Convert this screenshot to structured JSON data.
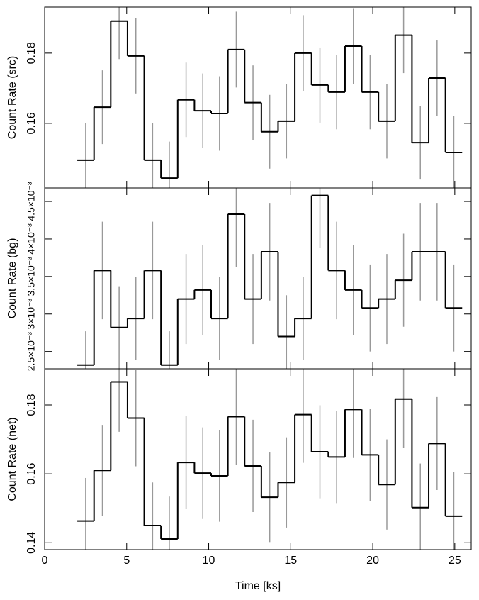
{
  "chart_data": [
    {
      "type": "line",
      "ylabel": "Count Rate (src)",
      "xlim": [
        0,
        26
      ],
      "xticks": [
        0,
        5,
        10,
        15,
        20,
        25
      ],
      "ylim": [
        0.1416,
        0.1931
      ],
      "yticks": [
        0.16,
        0.18
      ],
      "x": [
        2.5,
        3.52,
        4.54,
        5.56,
        6.58,
        7.6,
        8.62,
        9.64,
        10.66,
        11.68,
        12.7,
        13.72,
        14.74,
        15.76,
        16.78,
        17.8,
        18.82,
        19.84,
        20.86,
        21.88,
        22.9,
        23.92,
        24.94
      ],
      "series": [
        {
          "color": "#000000",
          "error_color": "#999999",
          "values": [
            0.1495,
            0.1646,
            0.1891,
            0.1792,
            0.1495,
            0.1444,
            0.1667,
            0.1636,
            0.1628,
            0.181,
            0.1659,
            0.1576,
            0.1606,
            0.18,
            0.1709,
            0.1689,
            0.182,
            0.1689,
            0.1606,
            0.1851,
            0.1545,
            0.1729,
            0.1517
          ],
          "errors": [
            0.0105,
            0.0105,
            0.0108,
            0.0107,
            0.0105,
            0.0104,
            0.0106,
            0.0106,
            0.0106,
            0.0108,
            0.0106,
            0.0105,
            0.0106,
            0.0108,
            0.0107,
            0.0106,
            0.0108,
            0.0106,
            0.0106,
            0.0108,
            0.0105,
            0.0107,
            0.0105
          ]
        }
      ]
    },
    {
      "type": "line",
      "ylabel": "Count Rate (bg)",
      "xlim": [
        0,
        26
      ],
      "xticks": [
        0,
        5,
        10,
        15,
        20,
        25
      ],
      "ylim": [
        0.00227,
        0.00468
      ],
      "yticks": [
        {
          "value": 0.0025,
          "label": "2.5×10⁻³"
        },
        {
          "value": 0.003,
          "label": "3×10⁻³"
        },
        {
          "value": 0.0035,
          "label": "3.5×10⁻³"
        },
        {
          "value": 0.004,
          "label": "4×10⁻³"
        },
        {
          "value": 0.0045,
          "label": "4.5×10⁻³"
        }
      ],
      "x": [
        2.5,
        3.52,
        4.54,
        5.56,
        6.58,
        7.6,
        8.62,
        9.64,
        10.66,
        11.68,
        12.7,
        13.72,
        14.74,
        15.76,
        16.78,
        17.8,
        18.82,
        19.84,
        20.86,
        21.88,
        22.9,
        23.92,
        24.94
      ],
      "series": [
        {
          "color": "#000000",
          "error_color": "#999999",
          "values": [
            0.00232,
            0.00358,
            0.00282,
            0.00294,
            0.00358,
            0.00232,
            0.0032,
            0.00332,
            0.00294,
            0.00433,
            0.0032,
            0.00383,
            0.0027,
            0.00294,
            0.00458,
            0.00358,
            0.00332,
            0.00308,
            0.0032,
            0.00345,
            0.00383,
            0.00383,
            0.00308
          ],
          "errors": [
            0.00045,
            0.00065,
            0.00055,
            0.00055,
            0.00065,
            0.00045,
            0.0006,
            0.0006,
            0.00055,
            0.0007,
            0.0006,
            0.00065,
            0.00055,
            0.00055,
            0.0007,
            0.00065,
            0.0006,
            0.00058,
            0.0006,
            0.00062,
            0.00065,
            0.00065,
            0.00058
          ]
        }
      ]
    },
    {
      "type": "line",
      "ylabel": "Count Rate (net)",
      "xlabel": "Time [ks]",
      "xlim": [
        0,
        26
      ],
      "xticks": [
        0,
        5,
        10,
        15,
        20,
        25
      ],
      "ylim": [
        0.138,
        0.1905
      ],
      "yticks": [
        0.14,
        0.16,
        0.18
      ],
      "x": [
        2.5,
        3.52,
        4.54,
        5.56,
        6.58,
        7.6,
        8.62,
        9.64,
        10.66,
        11.68,
        12.7,
        13.72,
        14.74,
        15.76,
        16.78,
        17.8,
        18.82,
        19.84,
        20.86,
        21.88,
        22.9,
        23.92,
        24.94
      ],
      "series": [
        {
          "color": "#000000",
          "error_color": "#999999",
          "values": [
            0.1463,
            0.161,
            0.1867,
            0.1762,
            0.145,
            0.1411,
            0.1633,
            0.1602,
            0.1594,
            0.1766,
            0.1623,
            0.1532,
            0.1575,
            0.1772,
            0.1664,
            0.1649,
            0.1787,
            0.1655,
            0.1569,
            0.1817,
            0.1502,
            0.1688,
            0.1477
          ],
          "errors": [
            0.0125,
            0.0132,
            0.0145,
            0.014,
            0.0125,
            0.0123,
            0.0134,
            0.0133,
            0.0133,
            0.014,
            0.0134,
            0.013,
            0.0131,
            0.014,
            0.0135,
            0.0134,
            0.0141,
            0.0134,
            0.0131,
            0.0142,
            0.0128,
            0.0135,
            0.0128
          ]
        }
      ]
    }
  ]
}
